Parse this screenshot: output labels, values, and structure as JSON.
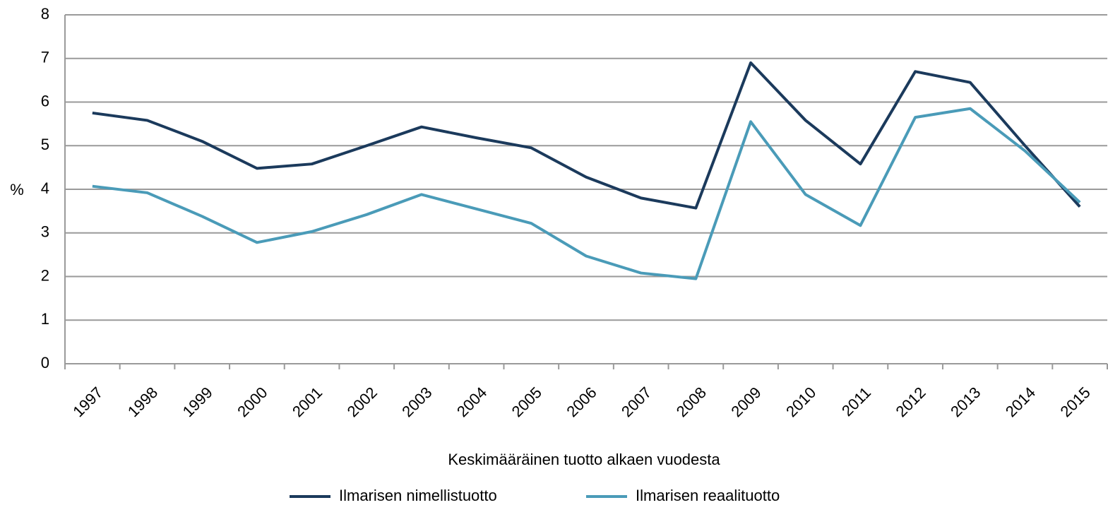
{
  "chart_data": {
    "type": "line",
    "x_label": "Keskimääräinen tuotto alkaen vuodesta",
    "y_label": "%",
    "categories": [
      "1997",
      "1998",
      "1999",
      "2000",
      "2001",
      "2002",
      "2003",
      "2004",
      "2005",
      "2006",
      "2007",
      "2008",
      "2009",
      "2010",
      "2011",
      "2012",
      "2013",
      "2014",
      "2015"
    ],
    "series": [
      {
        "name": "Ilmarisen nimellistuotto",
        "color": "#1b3a5c",
        "values": [
          5.75,
          5.58,
          5.1,
          4.48,
          4.58,
          5.0,
          5.43,
          5.18,
          4.95,
          4.28,
          3.8,
          3.57,
          6.9,
          5.58,
          4.58,
          6.7,
          6.45,
          5.0,
          3.6
        ]
      },
      {
        "name": "Ilmarisen reaalituotto",
        "color": "#4a9bb8",
        "values": [
          4.07,
          3.92,
          3.38,
          2.78,
          3.03,
          3.42,
          3.88,
          3.55,
          3.22,
          2.47,
          2.08,
          1.95,
          5.55,
          3.88,
          3.17,
          5.65,
          5.85,
          4.88,
          3.7
        ]
      }
    ],
    "ylim": [
      0,
      8
    ],
    "yticks": [
      0,
      1,
      2,
      3,
      4,
      5,
      6,
      7,
      8
    ],
    "grid": true,
    "legend": "bottom"
  }
}
